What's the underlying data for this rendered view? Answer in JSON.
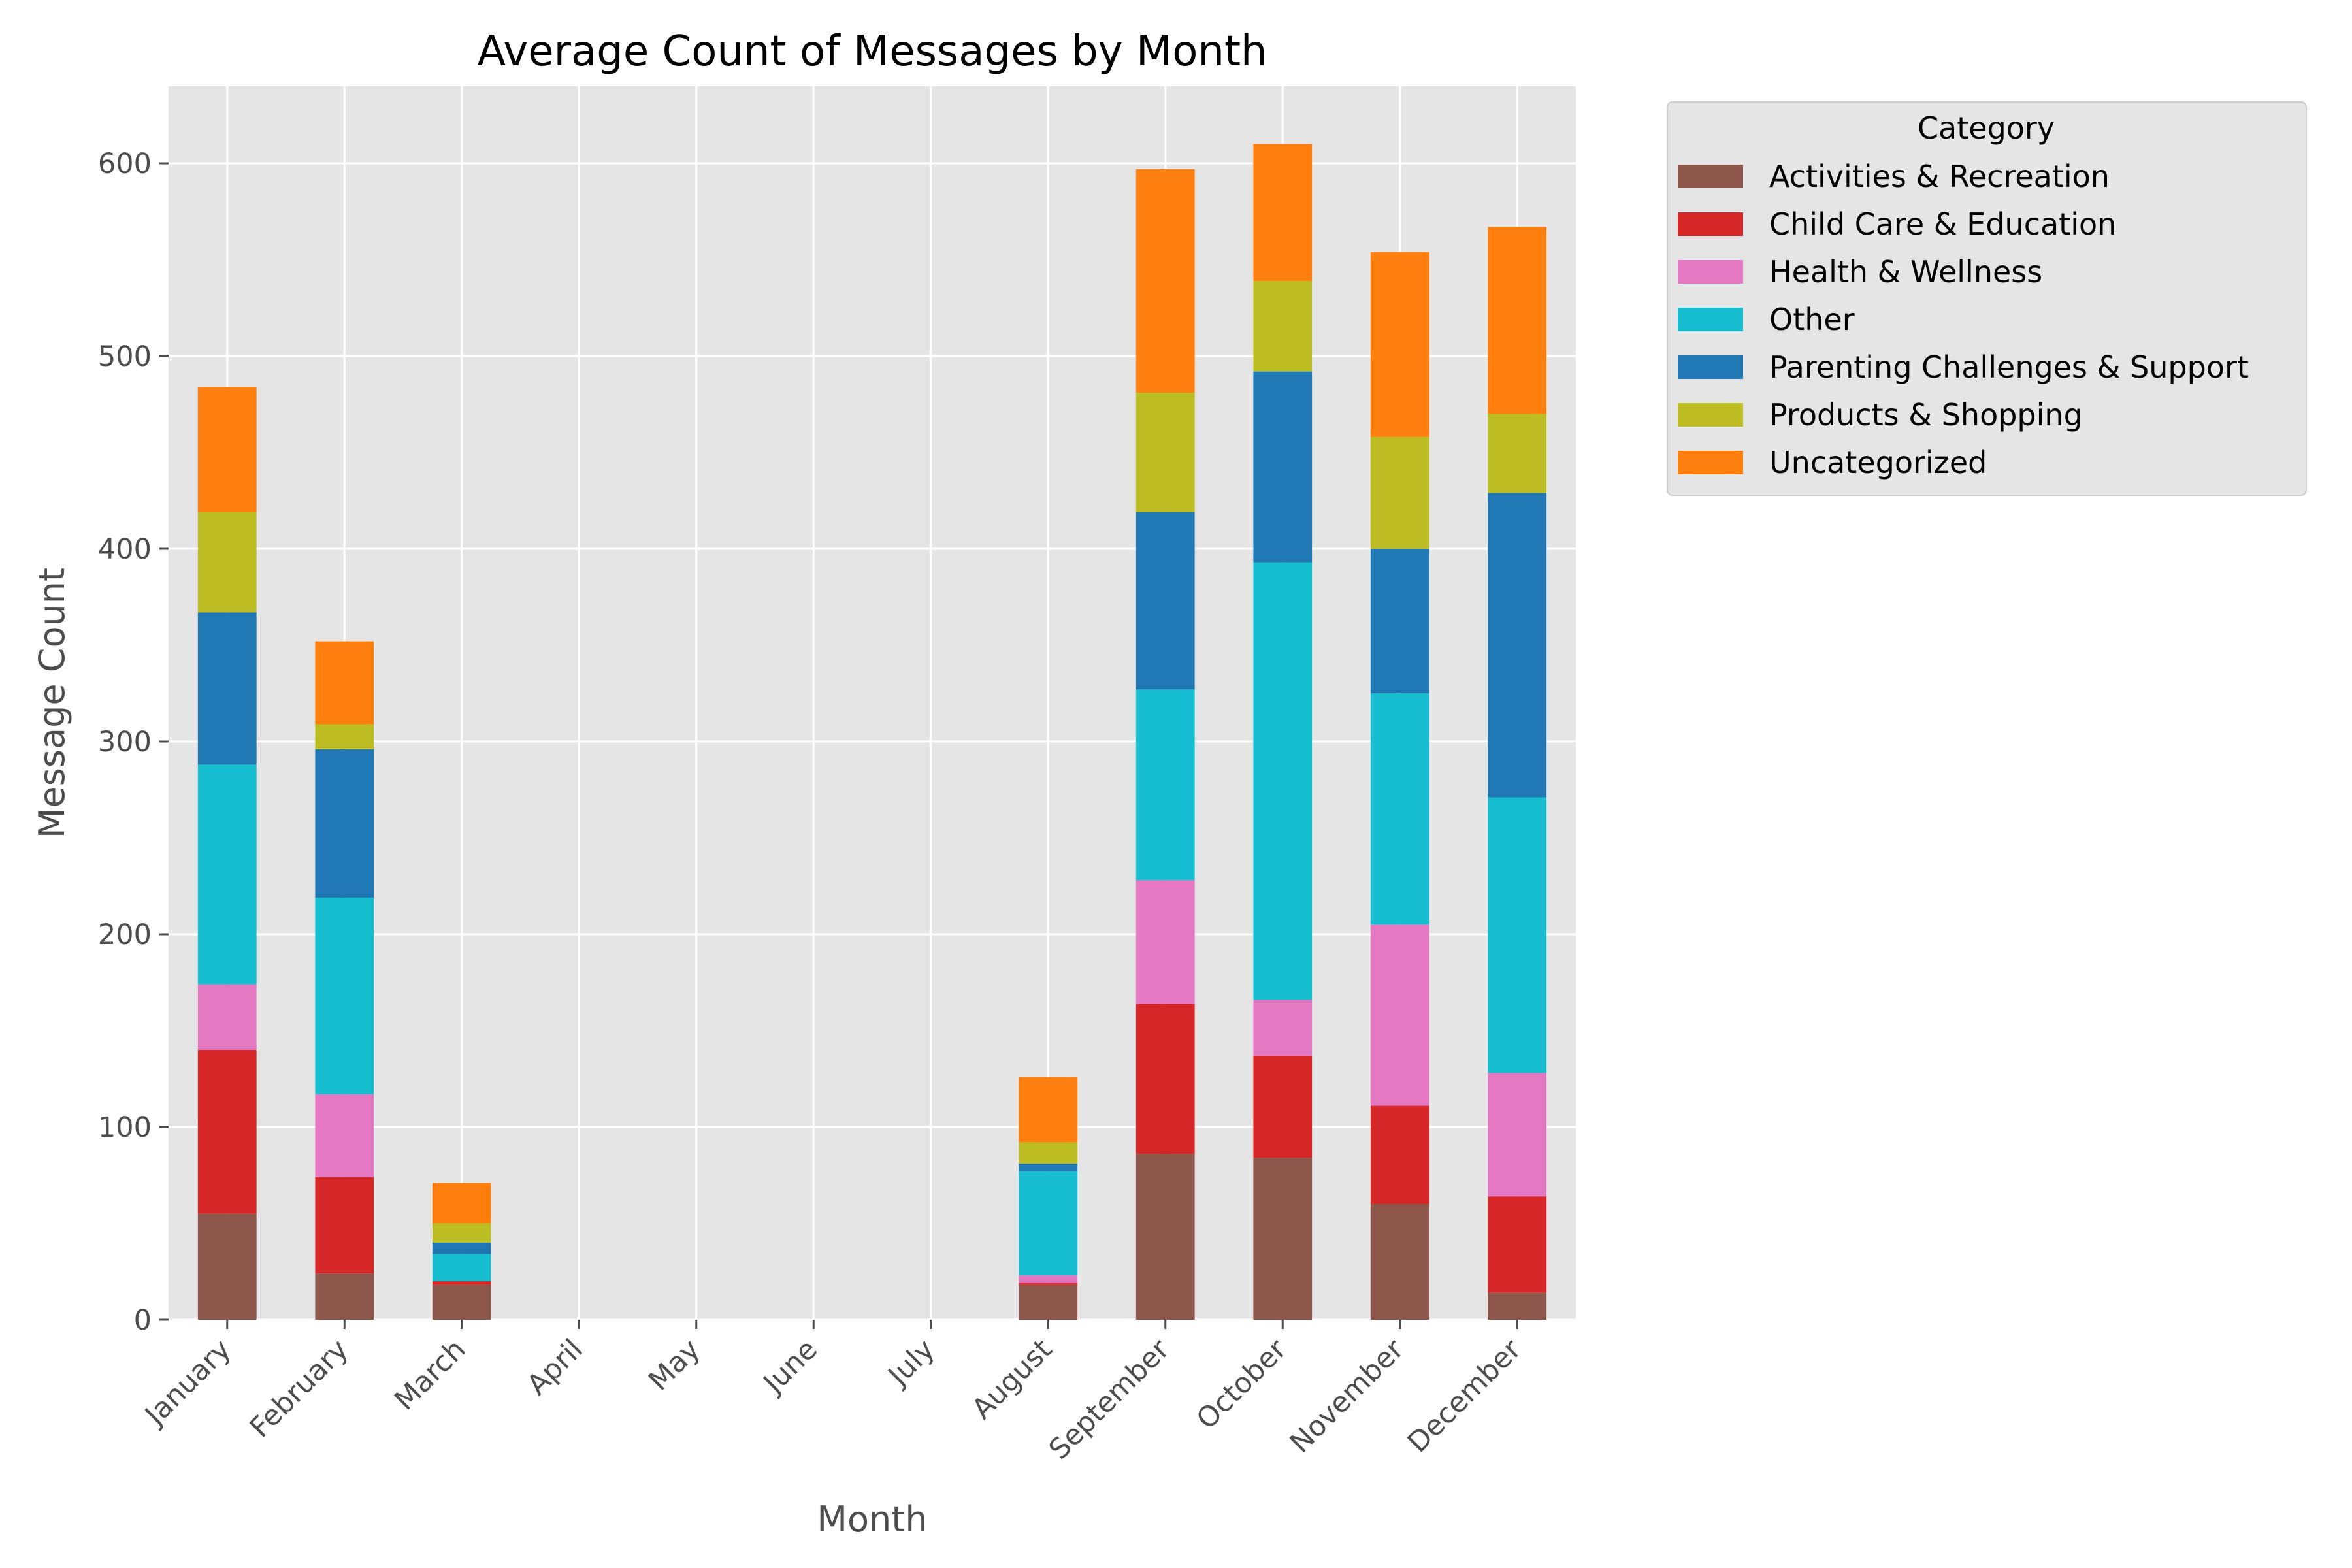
{
  "chart_data": {
    "type": "bar",
    "stacked": true,
    "title": "Average Count of Messages by Month",
    "xlabel": "Month",
    "ylabel": "Message Count",
    "ylim": [
      0,
      640
    ],
    "yticks": [
      0,
      100,
      200,
      300,
      400,
      500,
      600
    ],
    "grid": true,
    "legend_title": "Category",
    "legend_placement": "outside-top-right",
    "categories": [
      "January",
      "February",
      "March",
      "April",
      "May",
      "June",
      "July",
      "August",
      "September",
      "October",
      "November",
      "December"
    ],
    "series": [
      {
        "name": "Activities & Recreation",
        "color": "#8c564b",
        "values": [
          55,
          24,
          18,
          0,
          0,
          0,
          0,
          18,
          86,
          84,
          60,
          14
        ]
      },
      {
        "name": "Child Care & Education",
        "color": "#d62728",
        "values": [
          85,
          50,
          2,
          0,
          0,
          0,
          0,
          1,
          78,
          53,
          51,
          50
        ]
      },
      {
        "name": "Health & Wellness",
        "color": "#e377c2",
        "values": [
          34,
          43,
          0,
          0,
          0,
          0,
          0,
          4,
          64,
          29,
          94,
          64
        ]
      },
      {
        "name": "Other",
        "color": "#17becf",
        "values": [
          114,
          102,
          14,
          0,
          0,
          0,
          0,
          54,
          99,
          227,
          120,
          143
        ]
      },
      {
        "name": "Parenting Challenges & Support",
        "color": "#1f77b4",
        "values": [
          79,
          77,
          6,
          0,
          0,
          0,
          0,
          4,
          92,
          99,
          75,
          158
        ]
      },
      {
        "name": "Products & Shopping",
        "color": "#bcbd22",
        "values": [
          52,
          13,
          10,
          0,
          0,
          0,
          0,
          11,
          62,
          47,
          58,
          41
        ]
      },
      {
        "name": "Uncategorized",
        "color": "#ff7f0e",
        "values": [
          65,
          43,
          21,
          0,
          0,
          0,
          0,
          34,
          116,
          71,
          96,
          97
        ]
      }
    ]
  }
}
